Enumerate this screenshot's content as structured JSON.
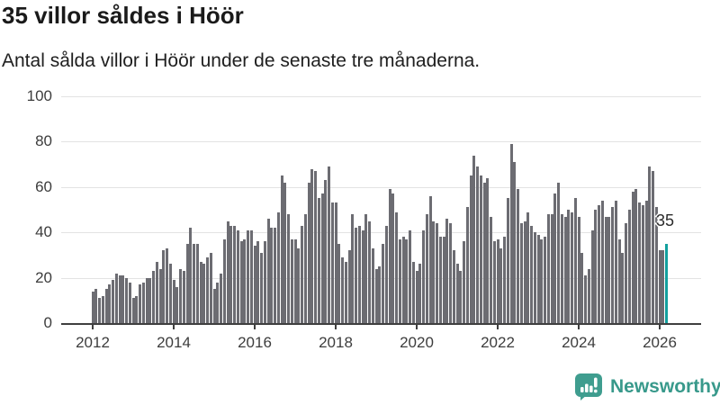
{
  "title": "35 villor såldes i Höör",
  "subtitle": "Antal sålda villor i Höör under de senaste tre månaderna.",
  "annotation": {
    "last_value_label": "35"
  },
  "branding": {
    "name": "Newsworthy"
  },
  "colors": {
    "bar": "#6c6c72",
    "highlight_bar": "#12a09e",
    "brand_teal": "#38998b",
    "axis": "#3f3f3f",
    "gridline": "#e3e3e3",
    "title_text": "#1a1a1a",
    "label_text": "#3d3d3d"
  },
  "chart_data": {
    "type": "bar",
    "title": "35 villor såldes i Höör",
    "subtitle": "Antal sålda villor i Höör under de senaste tre månaderna.",
    "frequency": "monthly",
    "x_start": "2012-01",
    "x_end": "2026-03",
    "x_tick_labels": [
      "2012",
      "2014",
      "2016",
      "2018",
      "2020",
      "2022",
      "2024",
      "2026"
    ],
    "ylim": [
      0,
      100
    ],
    "y_ticks": [
      0,
      20,
      40,
      60,
      80,
      100
    ],
    "grid": "horizontal",
    "legend": "none",
    "highlight_last": true,
    "last_value_label": "35",
    "values": [
      14,
      15,
      11,
      12,
      15,
      17,
      19,
      22,
      21,
      21,
      20,
      18,
      11,
      12,
      17,
      18,
      20,
      20,
      23,
      27,
      24,
      32,
      33,
      26,
      19,
      16,
      24,
      23,
      35,
      42,
      35,
      35,
      27,
      26,
      29,
      31,
      15,
      18,
      22,
      37,
      45,
      43,
      43,
      41,
      36,
      37,
      41,
      41,
      34,
      36,
      31,
      36,
      46,
      42,
      42,
      49,
      65,
      62,
      48,
      37,
      37,
      33,
      43,
      48,
      62,
      68,
      67,
      55,
      57,
      63,
      69,
      53,
      53,
      35,
      29,
      27,
      32,
      48,
      42,
      43,
      41,
      48,
      45,
      33,
      24,
      25,
      35,
      43,
      59,
      57,
      49,
      37,
      38,
      37,
      41,
      27,
      23,
      26,
      41,
      48,
      56,
      45,
      44,
      38,
      38,
      46,
      44,
      32,
      26,
      23,
      36,
      51,
      65,
      74,
      69,
      65,
      62,
      64,
      47,
      36,
      37,
      33,
      38,
      55,
      79,
      71,
      59,
      44,
      45,
      49,
      43,
      40,
      39,
      37,
      38,
      48,
      48,
      57,
      62,
      48,
      47,
      50,
      49,
      55,
      47,
      31,
      21,
      24,
      41,
      50,
      52,
      54,
      47,
      47,
      51,
      54,
      37,
      31,
      44,
      50,
      58,
      59,
      53,
      52,
      54,
      69,
      67,
      51,
      32,
      32,
      35
    ]
  }
}
